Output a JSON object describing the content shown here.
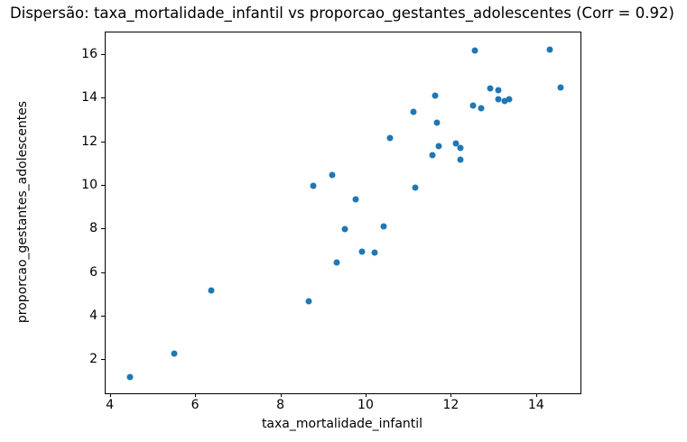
{
  "chart_data": {
    "type": "scatter",
    "title": "Dispersão: taxa_mortalidade_infantil vs proporcao_gestantes_adolescentes (Corr = 0.92)",
    "xlabel": "taxa_mortalidade_infantil",
    "ylabel": "proporcao_gestantes_adolescentes",
    "correlation": 0.92,
    "marker_color": "#1f77b4",
    "background_color": "#ffffff",
    "grid": false,
    "legend": "none",
    "xlim": [
      3.88,
      15.02
    ],
    "ylim": [
      0.49,
      17.03
    ],
    "x_ticks": [
      4,
      6,
      8,
      10,
      12,
      14
    ],
    "y_ticks": [
      2,
      4,
      6,
      8,
      10,
      12,
      14,
      16
    ],
    "points": [
      [
        4.45,
        1.25
      ],
      [
        5.5,
        2.3
      ],
      [
        6.35,
        5.2
      ],
      [
        8.65,
        4.7
      ],
      [
        9.3,
        6.5
      ],
      [
        9.5,
        8.0
      ],
      [
        9.9,
        7.0
      ],
      [
        10.2,
        6.95
      ],
      [
        10.4,
        8.15
      ],
      [
        8.75,
        10.0
      ],
      [
        9.2,
        10.5
      ],
      [
        9.75,
        9.4
      ],
      [
        11.15,
        9.9
      ],
      [
        10.55,
        12.2
      ],
      [
        11.55,
        11.4
      ],
      [
        11.7,
        11.8
      ],
      [
        12.1,
        11.95
      ],
      [
        12.2,
        11.75
      ],
      [
        12.2,
        11.2
      ],
      [
        11.65,
        12.9
      ],
      [
        11.1,
        13.4
      ],
      [
        11.6,
        14.15
      ],
      [
        12.5,
        13.7
      ],
      [
        12.7,
        13.55
      ],
      [
        12.9,
        14.45
      ],
      [
        13.1,
        14.4
      ],
      [
        13.1,
        13.95
      ],
      [
        13.25,
        13.9
      ],
      [
        13.35,
        13.95
      ],
      [
        14.55,
        14.5
      ],
      [
        12.55,
        16.2
      ],
      [
        14.3,
        16.25
      ]
    ]
  }
}
